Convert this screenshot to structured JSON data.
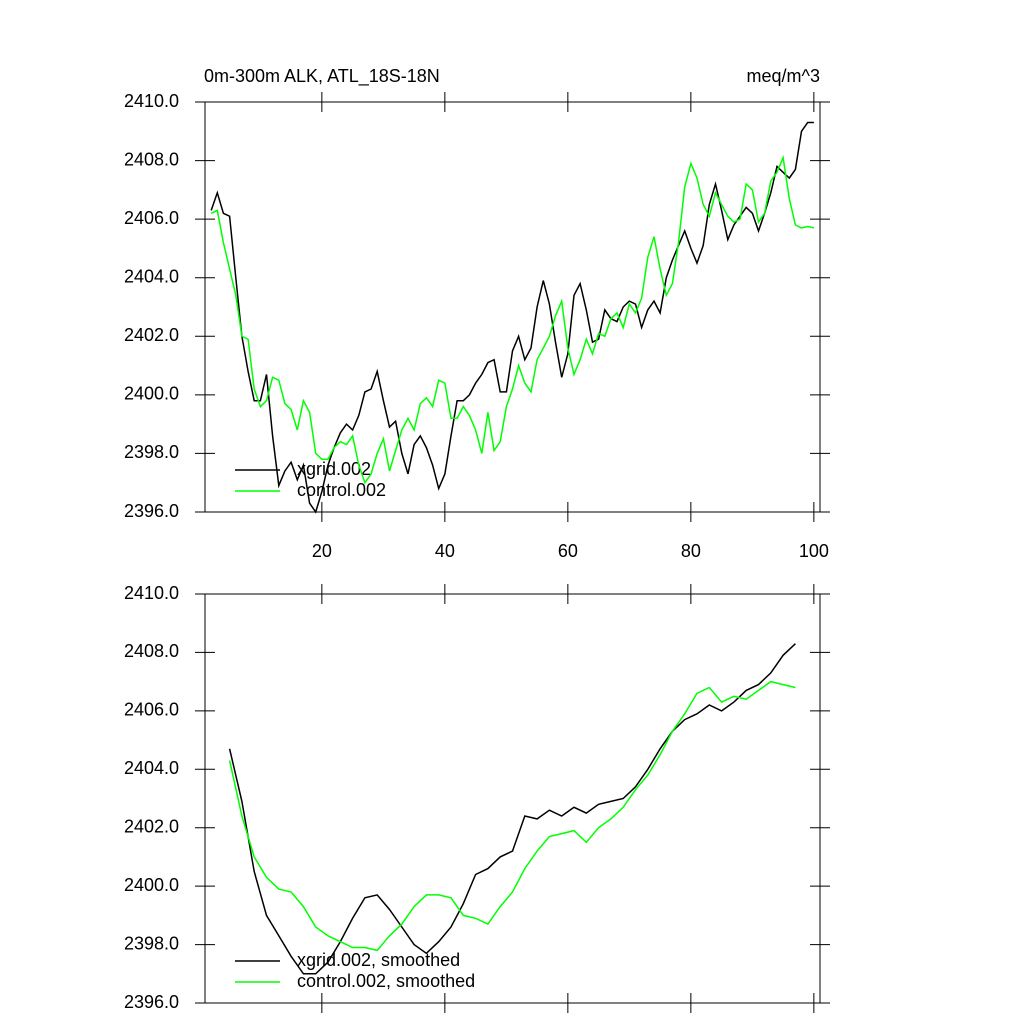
{
  "chart_data": [
    {
      "type": "line",
      "title": "0m-300m ALK, ATL_18S-18N",
      "title_right": "meq/m^3",
      "xlim": [
        1,
        101
      ],
      "xticks": [
        20,
        40,
        60,
        80,
        100
      ],
      "ylim": [
        2396,
        2410
      ],
      "yticks": [
        {
          "value": 2396,
          "label": "2396.0"
        },
        {
          "value": 2398,
          "label": "2398.0"
        },
        {
          "value": 2400,
          "label": "2400.0"
        },
        {
          "value": 2402,
          "label": "2402.0"
        },
        {
          "value": 2404,
          "label": "2404.0"
        },
        {
          "value": 2406,
          "label": "2406.0"
        },
        {
          "value": 2408,
          "label": "2408.0"
        },
        {
          "value": 2410,
          "label": "2410.0"
        }
      ],
      "x": [
        2,
        3,
        4,
        5,
        6,
        7,
        8,
        9,
        10,
        11,
        12,
        13,
        14,
        15,
        16,
        17,
        18,
        19,
        20,
        21,
        22,
        23,
        24,
        25,
        26,
        27,
        28,
        29,
        30,
        31,
        32,
        33,
        34,
        35,
        36,
        37,
        38,
        39,
        40,
        41,
        42,
        43,
        44,
        45,
        46,
        47,
        48,
        49,
        50,
        51,
        52,
        53,
        54,
        55,
        56,
        57,
        58,
        59,
        60,
        61,
        62,
        63,
        64,
        65,
        66,
        67,
        68,
        69,
        70,
        71,
        72,
        73,
        74,
        75,
        76,
        77,
        78,
        79,
        80,
        81,
        82,
        83,
        84,
        85,
        86,
        87,
        88,
        89,
        90,
        91,
        92,
        93,
        94,
        95,
        96,
        97,
        98,
        99,
        100
      ],
      "series": [
        {
          "name": "xgrid.002",
          "color": "#000000",
          "values": [
            2406.3,
            2406.9,
            2406.2,
            2406.1,
            2404.0,
            2402.0,
            2400.8,
            2399.8,
            2399.8,
            2400.7,
            2398.6,
            2396.9,
            2397.4,
            2397.7,
            2397.1,
            2397.6,
            2396.3,
            2396.0,
            2396.7,
            2397.6,
            2398.2,
            2398.7,
            2399.0,
            2398.8,
            2399.3,
            2400.1,
            2400.2,
            2400.8,
            2399.8,
            2398.9,
            2399.1,
            2398.0,
            2397.3,
            2398.3,
            2398.6,
            2398.2,
            2397.6,
            2396.8,
            2397.3,
            2398.6,
            2399.8,
            2399.8,
            2400.0,
            2400.4,
            2400.7,
            2401.1,
            2401.2,
            2400.1,
            2400.1,
            2401.5,
            2402.0,
            2401.2,
            2401.6,
            2403.0,
            2403.9,
            2403.1,
            2401.8,
            2400.6,
            2401.4,
            2403.4,
            2403.8,
            2402.9,
            2401.8,
            2401.9,
            2402.9,
            2402.6,
            2402.5,
            2403.0,
            2403.2,
            2403.1,
            2402.3,
            2402.9,
            2403.2,
            2402.8,
            2404.0,
            2404.6,
            2405.1,
            2405.6,
            2405.0,
            2404.5,
            2405.1,
            2406.5,
            2407.2,
            2406.3,
            2405.3,
            2405.8,
            2406.1,
            2406.4,
            2406.2,
            2405.6,
            2406.2,
            2406.9,
            2407.8,
            2407.6,
            2407.4,
            2407.7,
            2409.0,
            2409.3,
            2409.3
          ]
        },
        {
          "name": "control.002",
          "color": "#00ff00",
          "values": [
            2406.2,
            2406.3,
            2405.2,
            2404.3,
            2403.4,
            2402.0,
            2401.9,
            2400.2,
            2399.6,
            2399.8,
            2400.6,
            2400.5,
            2399.7,
            2399.5,
            2398.8,
            2399.8,
            2399.4,
            2398.0,
            2397.8,
            2397.8,
            2398.2,
            2398.4,
            2398.3,
            2398.6,
            2397.6,
            2397.0,
            2397.3,
            2398.0,
            2398.5,
            2397.4,
            2398.1,
            2398.8,
            2399.2,
            2398.8,
            2399.7,
            2399.9,
            2399.6,
            2400.5,
            2400.4,
            2399.2,
            2399.2,
            2399.6,
            2399.3,
            2398.8,
            2398.0,
            2399.4,
            2398.1,
            2398.4,
            2399.6,
            2400.2,
            2401.0,
            2400.4,
            2400.1,
            2401.2,
            2401.6,
            2402.0,
            2402.7,
            2403.2,
            2401.6,
            2400.7,
            2401.2,
            2401.9,
            2401.4,
            2402.1,
            2402.0,
            2402.6,
            2402.8,
            2402.3,
            2403.1,
            2402.8,
            2403.3,
            2404.7,
            2405.4,
            2404.3,
            2403.4,
            2403.8,
            2405.2,
            2407.1,
            2407.9,
            2407.4,
            2406.5,
            2406.1,
            2406.9,
            2406.5,
            2406.1,
            2405.9,
            2406.0,
            2407.2,
            2407.0,
            2405.9,
            2406.2,
            2407.3,
            2407.6,
            2408.1,
            2406.7,
            2405.8,
            2405.7,
            2405.75,
            2405.7
          ]
        }
      ]
    },
    {
      "type": "line",
      "xlim": [
        1,
        101
      ],
      "ylim": [
        2396,
        2410
      ],
      "yticks": [
        {
          "value": 2396,
          "label": "2396.0"
        },
        {
          "value": 2398,
          "label": "2398.0"
        },
        {
          "value": 2400,
          "label": "2400.0"
        },
        {
          "value": 2402,
          "label": "2402.0"
        },
        {
          "value": 2404,
          "label": "2404.0"
        },
        {
          "value": 2406,
          "label": "2406.0"
        },
        {
          "value": 2408,
          "label": "2408.0"
        },
        {
          "value": 2410,
          "label": "2410.0"
        }
      ],
      "x": [
        5,
        7,
        9,
        11,
        13,
        15,
        17,
        19,
        21,
        23,
        25,
        27,
        29,
        31,
        33,
        35,
        37,
        39,
        41,
        43,
        45,
        47,
        49,
        51,
        53,
        55,
        57,
        59,
        61,
        63,
        65,
        67,
        69,
        71,
        73,
        75,
        77,
        79,
        81,
        83,
        85,
        87,
        89,
        91,
        93,
        95,
        97
      ],
      "series": [
        {
          "name": "xgrid.002, smoothed",
          "color": "#000000",
          "values": [
            2404.7,
            2402.9,
            2400.5,
            2399.0,
            2398.3,
            2397.6,
            2397.0,
            2397.0,
            2397.4,
            2398.1,
            2398.9,
            2399.6,
            2399.7,
            2399.2,
            2398.6,
            2398.0,
            2397.7,
            2398.1,
            2398.6,
            2399.4,
            2400.4,
            2400.6,
            2401.0,
            2401.2,
            2402.4,
            2402.3,
            2402.6,
            2402.4,
            2402.7,
            2402.5,
            2402.8,
            2402.9,
            2403.0,
            2403.4,
            2404.0,
            2404.7,
            2405.3,
            2405.7,
            2405.9,
            2406.2,
            2406.0,
            2406.3,
            2406.7,
            2406.9,
            2407.3,
            2407.9,
            2408.3
          ]
        },
        {
          "name": "control.002, smoothed",
          "color": "#00ff00",
          "values": [
            2404.3,
            2402.4,
            2401.0,
            2400.3,
            2399.9,
            2399.8,
            2399.3,
            2398.6,
            2398.3,
            2398.1,
            2397.9,
            2397.9,
            2397.8,
            2398.3,
            2398.7,
            2399.3,
            2399.7,
            2399.7,
            2399.6,
            2399.0,
            2398.9,
            2398.7,
            2399.3,
            2399.8,
            2400.6,
            2401.2,
            2401.7,
            2401.8,
            2401.9,
            2401.5,
            2402.0,
            2402.3,
            2402.7,
            2403.3,
            2403.8,
            2404.5,
            2405.3,
            2405.9,
            2406.6,
            2406.8,
            2406.3,
            2406.5,
            2406.4,
            2406.7,
            2407.0,
            2406.9,
            2406.8
          ]
        }
      ]
    }
  ]
}
